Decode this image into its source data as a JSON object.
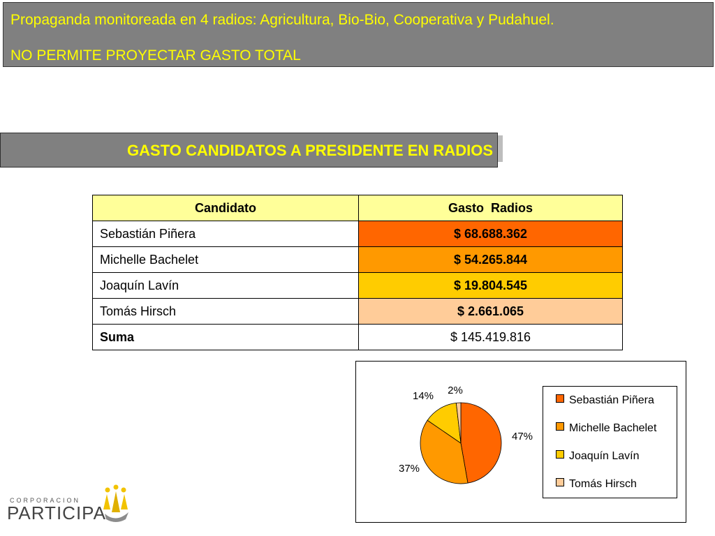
{
  "notice": {
    "line1": "Propaganda monitoreada en 4 radios: Agricultura, Bio-Bio, Cooperativa y Pudahuel.",
    "line2": "NO PERMITE PROYECTAR GASTO TOTAL"
  },
  "title": "GASTO CANDIDATOS A PRESIDENTE EN RADIOS",
  "table": {
    "headers": [
      "Candidato",
      "Gasto  Radios"
    ],
    "rows": [
      {
        "name": "Sebastián Piñera",
        "value": "$ 68.688.362",
        "color": "#ff6600"
      },
      {
        "name": "Michelle Bachelet",
        "value": "$ 54.265.844",
        "color": "#ff9900"
      },
      {
        "name": "Joaquín Lavín",
        "value": "$ 19.804.545",
        "color": "#ffcc00"
      },
      {
        "name": "Tomás Hirsch",
        "value": "$ 2.661.065",
        "color": "#ffcc99"
      }
    ],
    "sum_label": "Suma",
    "sum_value": "$ 145.419.816"
  },
  "chart_data": {
    "type": "pie",
    "categories": [
      "Sebastián Piñera",
      "Michelle Bachelet",
      "Joaquín Lavín",
      "Tomás Hirsch"
    ],
    "values": [
      68688362,
      54265844,
      19804545,
      2661065
    ],
    "labels": [
      "47%",
      "37%",
      "14%",
      "2%"
    ],
    "colors": [
      "#ff6600",
      "#ff9900",
      "#ffcc00",
      "#ffcc99"
    ],
    "legend_position": "right"
  },
  "logo": {
    "top_text": "CORPORACION",
    "main_text": "PARTICIPA"
  }
}
